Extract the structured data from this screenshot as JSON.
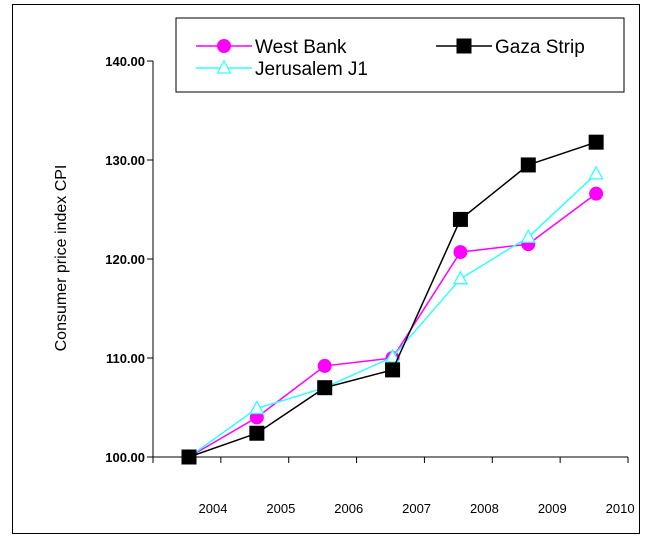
{
  "chart_data": {
    "type": "line",
    "title": "",
    "xlabel": "",
    "ylabel": "Consumer price index CPI",
    "ylim": [
      100,
      140
    ],
    "yticks": [
      "100.00",
      "110.00",
      "120.00",
      "130.00",
      "140.00"
    ],
    "categories": [
      "2004",
      "2005",
      "2006",
      "2007",
      "2008",
      "2009",
      "2010"
    ],
    "grid": false,
    "legend_position": "top",
    "series": [
      {
        "name": "West Bank",
        "color": "#ff00ff",
        "marker": "circle",
        "values": [
          100.0,
          104.0,
          109.2,
          110.0,
          120.7,
          121.5,
          126.6
        ]
      },
      {
        "name": "Jerusalem J1",
        "color": "#33ffff",
        "marker": "triangle",
        "values": [
          100.0,
          104.9,
          107.0,
          110.1,
          118.0,
          122.2,
          128.6
        ]
      },
      {
        "name": "Gaza Strip",
        "color": "#000000",
        "marker": "square",
        "values": [
          100.0,
          102.4,
          107.0,
          108.8,
          124.0,
          129.5,
          131.8
        ]
      }
    ]
  }
}
